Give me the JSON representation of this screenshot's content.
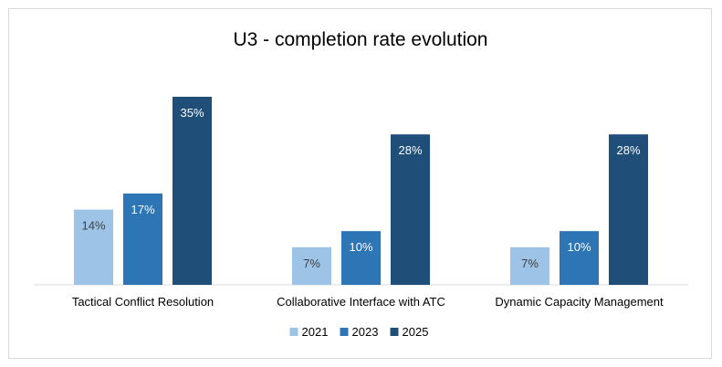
{
  "chart_data": {
    "type": "bar",
    "title": "U3 - completion rate evolution",
    "categories": [
      "Tactical Conflict Resolution",
      "Collaborative Interface with ATC",
      "Dynamic Capacity Management"
    ],
    "series": [
      {
        "name": "2021",
        "values": [
          14,
          7,
          7
        ],
        "labels": [
          "14%",
          "7%",
          "7%"
        ],
        "color": "#9dc3e6",
        "label_color": "#404040"
      },
      {
        "name": "2023",
        "values": [
          17,
          10,
          10
        ],
        "labels": [
          "17%",
          "10%",
          "10%"
        ],
        "color": "#2e75b6",
        "label_color": "#ffffff"
      },
      {
        "name": "2025",
        "values": [
          35,
          28,
          28
        ],
        "labels": [
          "35%",
          "28%",
          "28%"
        ],
        "color": "#1f4e79",
        "label_color": "#ffffff"
      }
    ],
    "ylim": [
      0,
      35
    ],
    "grid": false,
    "legend": "bottom",
    "xlabel": "",
    "ylabel": ""
  }
}
